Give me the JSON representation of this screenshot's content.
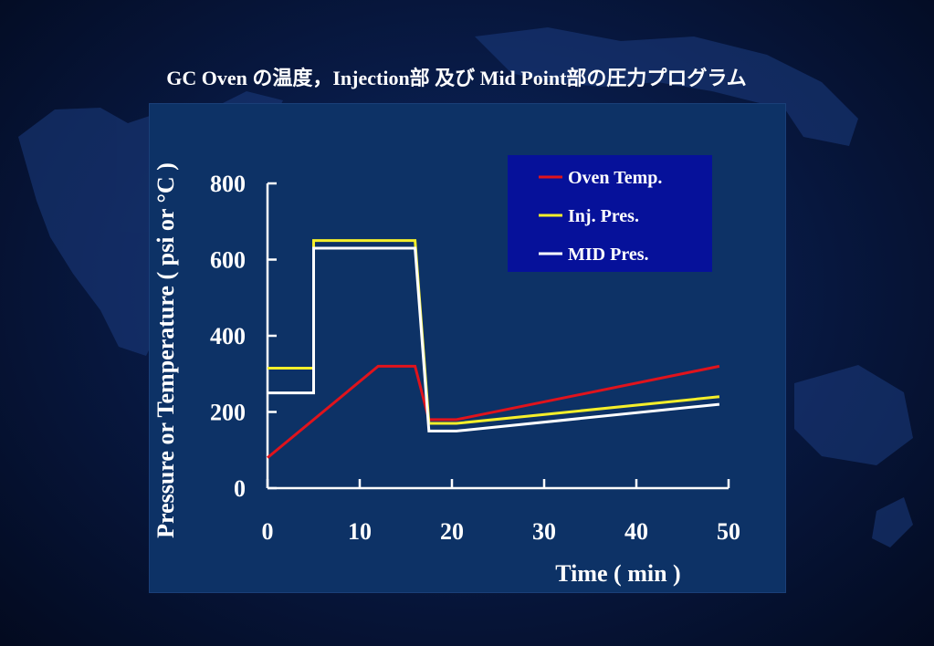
{
  "slide_title": "GC Oven の温度，Injection部 及び Mid Point部の圧力プログラム",
  "colors": {
    "background": "#081a45",
    "panel": "#0d3266",
    "legend_bg": "#06119a",
    "oven": "#e0131c",
    "inj": "#f5ef2a",
    "mid": "#ffffff"
  },
  "chart_data": {
    "type": "line",
    "title": "",
    "xlabel": "Time ( min )",
    "ylabel": "Pressure or Temperature ( psi or °C )",
    "xlim": [
      0,
      50
    ],
    "ylim": [
      0,
      800
    ],
    "xticks": [
      0,
      10,
      20,
      30,
      40,
      50
    ],
    "yticks": [
      0,
      200,
      400,
      600,
      800
    ],
    "grid": false,
    "legend_position": "top-right",
    "series": [
      {
        "name": "Oven Temp.",
        "color": "#e0131c",
        "points": [
          [
            0,
            80
          ],
          [
            12,
            320
          ],
          [
            16,
            320
          ],
          [
            17.5,
            180
          ],
          [
            20.5,
            180
          ],
          [
            49,
            320
          ]
        ]
      },
      {
        "name": "Inj. Pres.",
        "color": "#f5ef2a",
        "points": [
          [
            0,
            315
          ],
          [
            5,
            315
          ],
          [
            5,
            650
          ],
          [
            16,
            650
          ],
          [
            17.5,
            170
          ],
          [
            20.5,
            170
          ],
          [
            49,
            240
          ]
        ]
      },
      {
        "name": "MID Pres.",
        "color": "#ffffff",
        "points": [
          [
            0,
            250
          ],
          [
            5,
            250
          ],
          [
            5,
            630
          ],
          [
            16,
            630
          ],
          [
            17.5,
            150
          ],
          [
            20.5,
            150
          ],
          [
            49,
            220
          ]
        ]
      }
    ]
  }
}
